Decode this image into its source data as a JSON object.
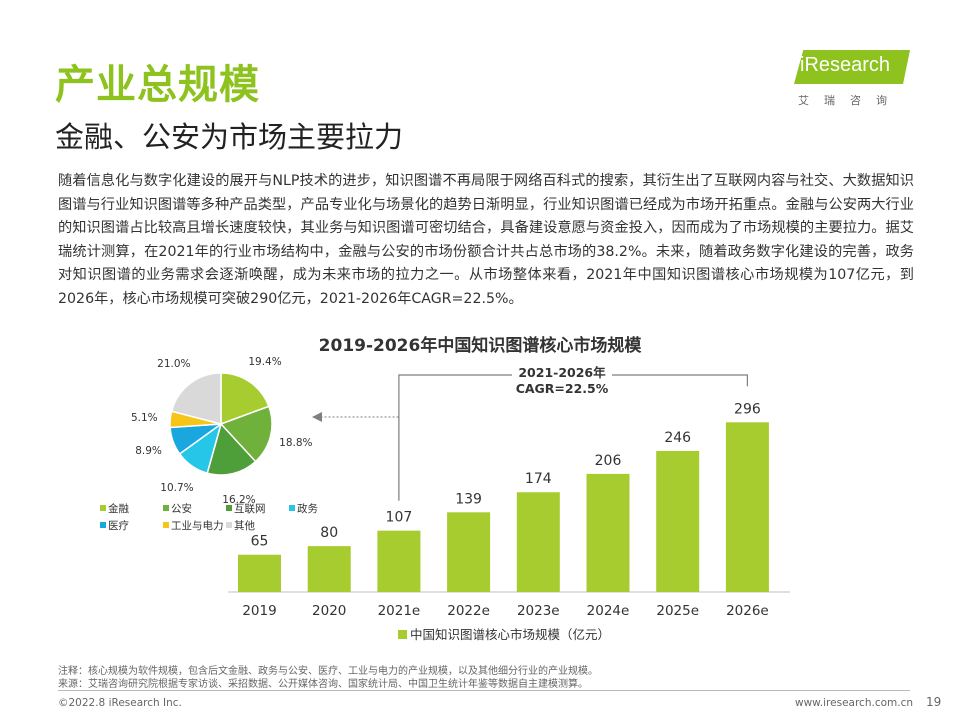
{
  "header": {
    "title": "产业总规模",
    "subtitle": "金融、公安为市场主要拉力"
  },
  "logo": {
    "text": "iResearch",
    "sub": "艾瑞咨询"
  },
  "paragraph": "随着信息化与数字化建设的展开与NLP技术的进步，知识图谱不再局限于网络百科式的搜索，其衍生出了互联网内容与社交、大数据知识图谱与行业知识图谱等多种产品类型，产品专业化与场景化的趋势日渐明显，行业知识图谱已经成为市场开拓重点。金融与公安两大行业的知识图谱占比较高且增长速度较快，其业务与知识图谱可密切结合，具备建设意愿与资金投入，因而成为了市场规模的主要拉力。据艾瑞统计测算，在2021年的行业市场结构中，金融与公安的市场份额合计共占总市场的38.2%。未来，随着政务数字化建设的完善，政务对知识图谱的业务需求会逐渐唤醒，成为未来市场的拉力之一。从市场整体来看，2021年中国知识图谱核心市场规模为107亿元，到2026年，核心市场规模可突破290亿元，2021-2026年CAGR=22.5%。",
  "chart_title": "2019-2026年中国知识图谱核心市场规模",
  "chart_data": [
    {
      "type": "bar",
      "title": "2019-2026年中国知识图谱核心市场规模",
      "categories": [
        "2019",
        "2020",
        "2021e",
        "2022e",
        "2023e",
        "2024e",
        "2025e",
        "2026e"
      ],
      "series": [
        {
          "name": "中国知识图谱核心市场规模（亿元）",
          "values": [
            65,
            80,
            107,
            139,
            174,
            206,
            246,
            296
          ],
          "color": "#a6cc2f"
        }
      ],
      "ylim": [
        0,
        300
      ],
      "annotation": [
        "2021-2026年",
        "CAGR=22.5%"
      ],
      "legend": "bottom"
    },
    {
      "type": "pie",
      "labels": [
        "金融",
        "公安",
        "互联网",
        "政务",
        "医疗",
        "工业与电力",
        "其他"
      ],
      "values": [
        19.4,
        18.8,
        16.2,
        10.7,
        8.9,
        5.1,
        21.0
      ],
      "value_labels": [
        "19.4%",
        "18.8%",
        "16.2%",
        "10.7%",
        "8.9%",
        "5.1%",
        "21.0%"
      ],
      "colors": [
        "#a6cc2f",
        "#6fb13a",
        "#4e9e3a",
        "#26c6e8",
        "#1aa6df",
        "#f5c518",
        "#d9d9d9"
      ],
      "legend": "bottom-left"
    }
  ],
  "footer": {
    "note1": "注释：核心规模为软件规模，包含后文金融、政务与公安、医疗、工业与电力的产业规模，以及其他细分行业的产业规模。",
    "note2": "来源：艾瑞咨询研究院根据专家访谈、采招数据、公开媒体咨询、国家统计局、中国卫生统计年鉴等数据自主建模测算。",
    "copyright": "©2022.8 iResearch Inc.",
    "site": "www.iresearch.com.cn",
    "page": "19"
  }
}
